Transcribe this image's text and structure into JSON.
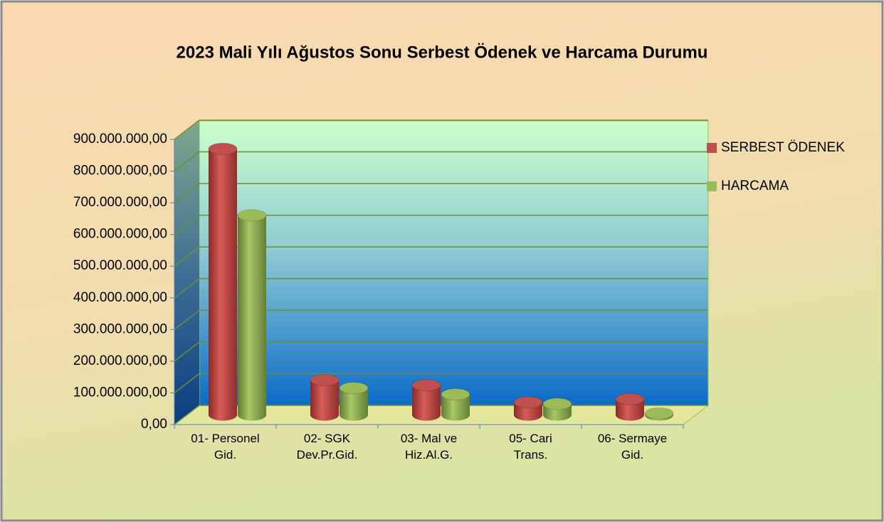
{
  "chart_data": {
    "type": "bar3d",
    "title": "2023 Mali Yılı Ağustos Sonu Serbest Ödenek ve Harcama Durumu",
    "categories": [
      "01- Personel\nGid.",
      "02- SGK\nDev.Pr.Gid.",
      "03- Mal ve\nHiz.Al.G.",
      "05- Cari\nTrans.",
      "06- Sermaye\nGid."
    ],
    "series": [
      {
        "name": "SERBEST ÖDENEK",
        "color": "#c0504d",
        "values": [
          840000000,
          110000000,
          94000000,
          40000000,
          50000000
        ]
      },
      {
        "name": "HARCAMA",
        "color": "#9bbb59",
        "values": [
          630000000,
          85000000,
          65000000,
          35000000,
          5000000
        ]
      }
    ],
    "ylim": [
      0,
      900000000
    ],
    "yticks": [
      {
        "value": 0,
        "label": "0,00"
      },
      {
        "value": 100000000,
        "label": "100.000.000,00"
      },
      {
        "value": 200000000,
        "label": "200.000.000,00"
      },
      {
        "value": 300000000,
        "label": "300.000.000,00"
      },
      {
        "value": 400000000,
        "label": "400.000.000,00"
      },
      {
        "value": 500000000,
        "label": "500.000.000,00"
      },
      {
        "value": 600000000,
        "label": "600.000.000,00"
      },
      {
        "value": 700000000,
        "label": "700.000.000,00"
      },
      {
        "value": 800000000,
        "label": "800.000.000,00"
      },
      {
        "value": 900000000,
        "label": "900.000.000,00"
      }
    ],
    "grid": true,
    "legend": "right"
  }
}
